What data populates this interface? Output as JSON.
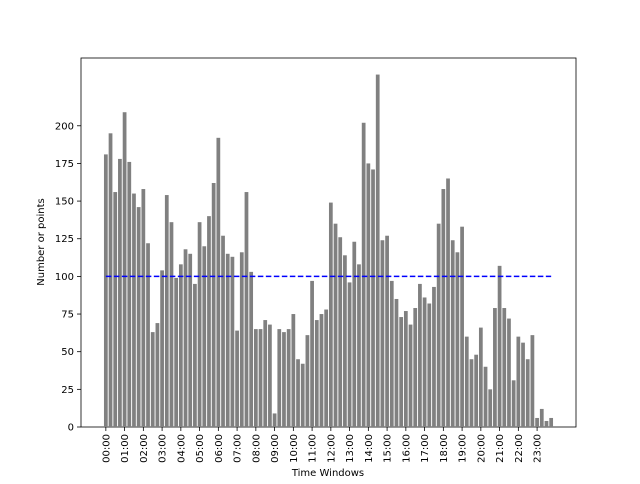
{
  "chart_data": {
    "type": "bar",
    "x_label": "Time Windows",
    "y_label": "Number or points",
    "categories": [
      "00:00",
      null,
      null,
      null,
      "01:00",
      null,
      null,
      null,
      "02:00",
      null,
      null,
      null,
      "03:00",
      null,
      null,
      null,
      "04:00",
      null,
      null,
      null,
      "05:00",
      null,
      null,
      null,
      "06:00",
      null,
      null,
      null,
      "07:00",
      null,
      null,
      null,
      "08:00",
      null,
      null,
      null,
      "09:00",
      null,
      null,
      null,
      "10:00",
      null,
      null,
      null,
      "11:00",
      null,
      null,
      null,
      "12:00",
      null,
      null,
      null,
      "13:00",
      null,
      null,
      null,
      "14:00",
      null,
      null,
      null,
      "15:00",
      null,
      null,
      null,
      "16:00",
      null,
      null,
      null,
      "17:00",
      null,
      null,
      null,
      "18:00",
      null,
      null,
      null,
      "19:00",
      null,
      null,
      null,
      "20:00",
      null,
      null,
      null,
      "21:00",
      null,
      null,
      null,
      "22:00",
      null,
      null,
      null,
      "23:00",
      null,
      null,
      null
    ],
    "values": [
      181,
      195,
      156,
      178,
      209,
      176,
      155,
      146,
      158,
      122,
      63,
      69,
      104,
      154,
      136,
      99,
      108,
      118,
      115,
      95,
      136,
      120,
      140,
      162,
      192,
      127,
      115,
      113,
      64,
      116,
      156,
      103,
      65,
      65,
      71,
      68,
      9,
      65,
      63,
      65,
      75,
      45,
      42,
      61,
      97,
      71,
      75,
      78,
      149,
      135,
      126,
      114,
      96,
      123,
      108,
      202,
      175,
      171,
      234,
      124,
      127,
      97,
      85,
      73,
      77,
      68,
      79,
      95,
      86,
      82,
      93,
      135,
      158,
      165,
      124,
      116,
      133,
      60,
      45,
      48,
      66,
      40,
      25,
      79,
      107,
      79,
      72,
      31,
      60,
      56,
      45,
      61,
      6,
      12,
      4,
      6
    ],
    "color": "#808080",
    "reference_line": {
      "value": 100,
      "color": "#0000ff"
    },
    "ylim": [
      0,
      245
    ],
    "yticks": [
      0,
      25,
      50,
      75,
      100,
      125,
      150,
      175,
      200
    ]
  }
}
